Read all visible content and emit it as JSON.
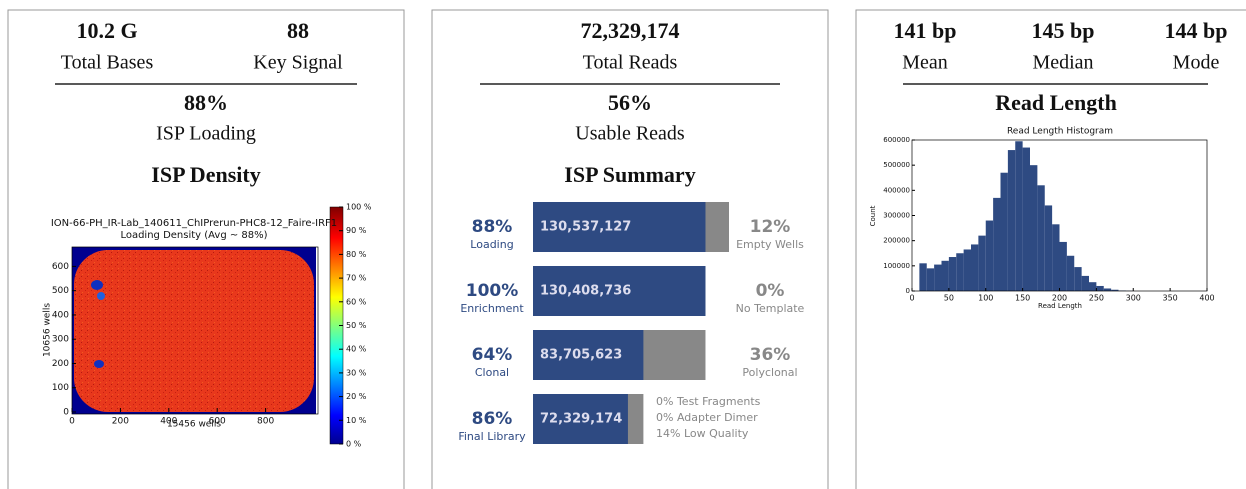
{
  "panel1": {
    "stats": [
      {
        "value": "10.2 G",
        "label": "Total Bases"
      },
      {
        "value": "88",
        "label": "Key Signal"
      }
    ],
    "loading": {
      "value": "88%",
      "label": "ISP Loading"
    },
    "heading": "ISP Density"
  },
  "panel2": {
    "stats": [
      {
        "value": "72,329,174",
        "label": "Total Reads"
      }
    ],
    "usable": {
      "value": "56%",
      "label": "Usable Reads"
    },
    "heading": "ISP Summary",
    "rows": [
      {
        "value": 88,
        "value_label": "88%",
        "label": "Loading",
        "count": "130,537,127",
        "rest": [
          "12%",
          "Empty Wells"
        ]
      },
      {
        "value": 100,
        "value_label": "100%",
        "label": "Enrichment",
        "count": "130,408,736",
        "rest": [
          "0%",
          "No Template"
        ]
      },
      {
        "value": 64,
        "value_label": "64%",
        "label": "Clonal",
        "count": "83,705,623",
        "rest": [
          "36%",
          "Polyclonal"
        ]
      },
      {
        "value": 86,
        "value_label": "86%",
        "label": "Final Library",
        "count": "72,329,174",
        "notes": [
          "0% Test Fragments",
          "0% Adapter Dimer",
          "14% Low Quality"
        ]
      }
    ]
  },
  "panel3": {
    "stats": [
      {
        "value": "141 bp",
        "label": "Mean"
      },
      {
        "value": "145 bp",
        "label": "Median"
      },
      {
        "value": "144 bp",
        "label": "Mode"
      }
    ],
    "heading": "Read Length"
  },
  "chart_data": [
    {
      "type": "heatmap",
      "title": "ION-66-PH_IR-Lab_140611_ChIPrerun-PHC8-12_Faire-IRF1",
      "subtitle": "Loading Density (Avg ~ 88%)",
      "xlabel": "15456 wells",
      "ylabel": "10656 wells",
      "xlim": [
        0,
        1000
      ],
      "ylim": [
        0,
        680
      ],
      "xticks": [
        0,
        200,
        400,
        600,
        800
      ],
      "yticks": [
        0,
        100,
        200,
        300,
        400,
        500,
        600
      ],
      "clim": [
        0,
        100
      ],
      "cticks": [
        {
          "value": 0,
          "label": "0 %"
        },
        {
          "value": 10,
          "label": "10 %"
        },
        {
          "value": 20,
          "label": "20 %"
        },
        {
          "value": 30,
          "label": "30 %"
        },
        {
          "value": 40,
          "label": "40 %"
        },
        {
          "value": 50,
          "label": "50 %"
        },
        {
          "value": 60,
          "label": "60 %"
        },
        {
          "value": 70,
          "label": "70 %"
        },
        {
          "value": 80,
          "label": "80 %"
        },
        {
          "value": 90,
          "label": "90 %"
        },
        {
          "value": 100,
          "label": "100 %"
        }
      ]
    },
    {
      "type": "histogram",
      "title": "Read Length Histogram",
      "xlabel": "Read Length",
      "ylabel": "Count",
      "color": "#2e4a82",
      "bins": [
        0,
        10,
        20,
        30,
        40,
        50,
        60,
        70,
        80,
        90,
        100,
        110,
        120,
        130,
        140,
        150,
        160,
        170,
        180,
        190,
        200,
        210,
        220,
        230,
        240,
        250,
        260,
        270,
        280,
        290,
        300,
        310,
        320,
        330,
        340,
        350,
        360,
        370,
        380,
        390,
        400
      ],
      "counts": [
        0,
        110000,
        90000,
        105000,
        120000,
        135000,
        150000,
        165000,
        185000,
        220000,
        280000,
        370000,
        470000,
        560000,
        595000,
        570000,
        500000,
        420000,
        340000,
        265000,
        195000,
        140000,
        95000,
        60000,
        35000,
        20000,
        10000,
        5000,
        2000,
        1000,
        0,
        0,
        0,
        0,
        0,
        0,
        0,
        0,
        0,
        0
      ],
      "xlim": [
        0,
        400
      ],
      "ylim": [
        0,
        600000
      ],
      "xticks": [
        0,
        50,
        100,
        150,
        200,
        250,
        300,
        350,
        400
      ],
      "yticks": [
        0,
        100000,
        200000,
        300000,
        400000,
        500000,
        600000
      ]
    }
  ]
}
